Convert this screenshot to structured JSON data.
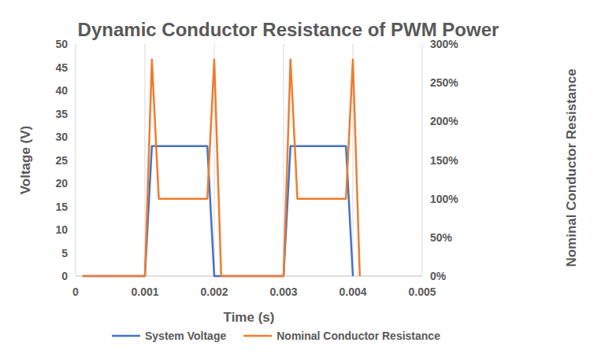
{
  "chart_data": {
    "type": "line",
    "title": "Dynamic Conductor Resistance of PWM Power",
    "x_label": "Time (s)",
    "y_label": "Voltage (V)",
    "y2_label": "Nominal Conductor Resistance",
    "x": [
      0.0001,
      0.0002,
      0.0003,
      0.0004,
      0.0005,
      0.0006,
      0.0007,
      0.0008,
      0.0009,
      0.001,
      0.0011,
      0.0012,
      0.0013,
      0.0014,
      0.0015,
      0.0016,
      0.0017,
      0.0018,
      0.0019,
      0.002,
      0.0021,
      0.0022,
      0.0023,
      0.0024,
      0.0025,
      0.0026,
      0.0027,
      0.0028,
      0.0029,
      0.003,
      0.0031,
      0.0032,
      0.0033,
      0.0034,
      0.0035,
      0.0036,
      0.0037,
      0.0038,
      0.0039,
      0.004,
      0.0041
    ],
    "series": [
      {
        "name": "System Voltage",
        "color": "#4472c4",
        "values": [
          0,
          0,
          0,
          0,
          0,
          0,
          0,
          0,
          0,
          0,
          28,
          28,
          28,
          28,
          28,
          28,
          28,
          28,
          28,
          0,
          0,
          0,
          0,
          0,
          0,
          0,
          0,
          0,
          0,
          0,
          28,
          28,
          28,
          28,
          28,
          28,
          28,
          28,
          28,
          0,
          null
        ]
      },
      {
        "name": "Nominal Conductor Resistance",
        "color": "#ed7d31",
        "axis": "y2",
        "values": [
          0,
          0,
          0,
          0,
          0,
          0,
          0,
          0,
          0,
          0,
          280,
          100,
          100,
          100,
          100,
          100,
          100,
          100,
          100,
          280,
          0,
          0,
          0,
          0,
          0,
          0,
          0,
          0,
          0,
          0,
          280,
          100,
          100,
          100,
          100,
          100,
          100,
          100,
          100,
          280,
          0
        ]
      }
    ],
    "xlim": [
      0,
      0.005
    ],
    "xticks": [
      0,
      0.001,
      0.002,
      0.003,
      0.004,
      0.005
    ],
    "ylim": [
      0,
      50
    ],
    "yticks": [
      0,
      5,
      10,
      15,
      20,
      25,
      30,
      35,
      40,
      45,
      50
    ],
    "y2lim": [
      0,
      300
    ],
    "y2ticks": [
      {
        "value": 0,
        "label": "0%"
      },
      {
        "value": 50,
        "label": "50%"
      },
      {
        "value": 100,
        "label": "100%"
      },
      {
        "value": 150,
        "label": "150%"
      },
      {
        "value": 200,
        "label": "200%"
      },
      {
        "value": 250,
        "label": "250%"
      },
      {
        "value": 300,
        "label": "300%"
      }
    ],
    "grid": true,
    "legend": "bottom"
  }
}
